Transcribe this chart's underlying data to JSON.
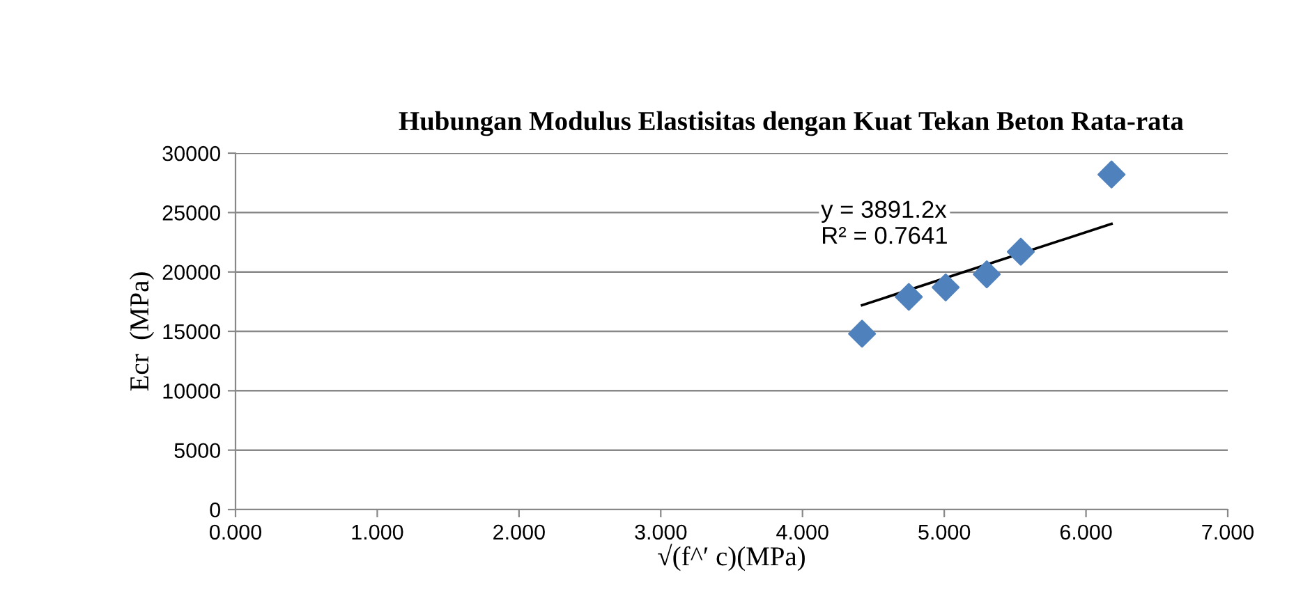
{
  "chart_data": {
    "type": "scatter",
    "title": "Hubungan Modulus Elastisitas dengan Kuat Tekan Beton Rata-rata",
    "xlabel": "√(f^′ c)(MPa)",
    "ylabel": "Ecr  (MPa)",
    "series": [
      {
        "color": "#4f81bd",
        "marker": "diamond",
        "x": [
          4.42,
          4.75,
          5.01,
          5.3,
          5.54,
          6.18
        ],
        "values": [
          14800,
          17900,
          18700,
          19800,
          21700,
          28200
        ]
      },
      {
        "type": "line",
        "color": "#000000",
        "marker": "none",
        "x": [
          4.42,
          6.18
        ],
        "values": [
          17200,
          24050
        ]
      }
    ],
    "annotations": [
      "y = 3891.2x\nR² = 0.7641"
    ],
    "xlim": [
      0,
      7
    ],
    "xticks": [
      {
        "value": 0,
        "label": "0.000"
      },
      {
        "value": 1,
        "label": "1.000"
      },
      {
        "value": 2,
        "label": "2.000"
      },
      {
        "value": 3,
        "label": "3.000"
      },
      {
        "value": 4,
        "label": "4.000"
      },
      {
        "value": 5,
        "label": "5.000"
      },
      {
        "value": 6,
        "label": "6.000"
      },
      {
        "value": 7,
        "label": "7.000"
      }
    ],
    "ylim": [
      0,
      30000
    ],
    "yticks": [
      0,
      5000,
      10000,
      15000,
      20000,
      25000,
      30000
    ],
    "grid": "y",
    "legend": false
  }
}
